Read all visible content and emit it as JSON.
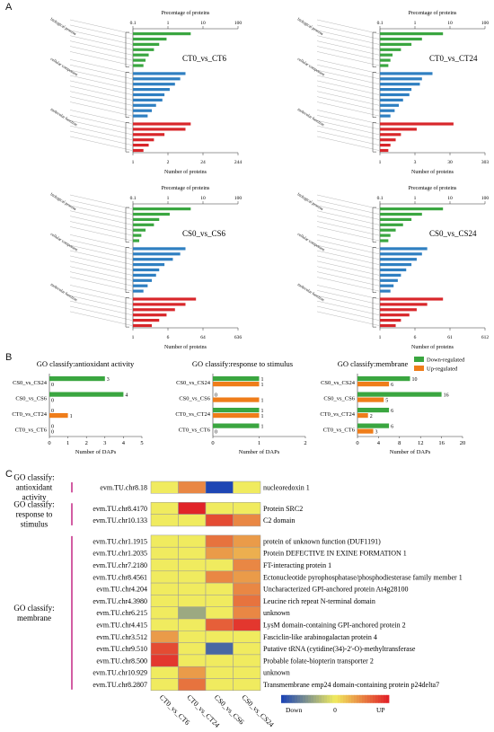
{
  "panels": {
    "a": "A",
    "b": "B",
    "c": "C"
  },
  "go_top": {
    "axis_title_top": "Precentage of proteins",
    "axis_title_bottom": "Number of proteins",
    "top_ticks": [
      "0.1",
      "1",
      "10",
      "100"
    ],
    "categories": [
      "biological process",
      "cellular component",
      "molecular function"
    ],
    "charts": [
      {
        "title": "CT0_vs_CT6",
        "bottom_ticks": [
          "1",
          "2",
          "24",
          "244"
        ]
      },
      {
        "title": "CT0_vs_CT24",
        "bottom_ticks": [
          "1",
          "3",
          "30",
          "303"
        ]
      },
      {
        "title": "CS0_vs_CS6",
        "bottom_ticks": [
          "1",
          "6",
          "64",
          "636"
        ]
      },
      {
        "title": "CS0_vs_CS24",
        "bottom_ticks": [
          "1",
          "6",
          "61",
          "612"
        ]
      }
    ]
  },
  "legend": {
    "down": "Down-regulated",
    "up": "Up-regulated",
    "down_color": "#3aa640",
    "up_color": "#ef7d1a"
  },
  "chart_data": [
    {
      "type": "bar",
      "title": "GO classify:antioxidant activity",
      "xlabel": "Number of DAPs",
      "categories": [
        "CS0_vs_CS24",
        "CS0_vs_CS6",
        "CT0_vs_CT24",
        "CT0_vs_CT6"
      ],
      "series": [
        {
          "name": "Down-regulated",
          "values": [
            3,
            4,
            0,
            0
          ]
        },
        {
          "name": "Up-regulated",
          "values": [
            0,
            0,
            1,
            0
          ]
        }
      ],
      "xlim": [
        0,
        5
      ],
      "xticks": [
        "0",
        "1",
        "2",
        "3",
        "4",
        "5"
      ]
    },
    {
      "type": "bar",
      "title": "GO classify:response to stimulus",
      "xlabel": "Number of DAPs",
      "categories": [
        "CS0_vs_CS24",
        "CS0_vs_CS6",
        "CT0_vs_CT24",
        "CT0_vs_CT6"
      ],
      "series": [
        {
          "name": "Down-regulated",
          "values": [
            1,
            0,
            1,
            1
          ]
        },
        {
          "name": "Up-regulated",
          "values": [
            1,
            1,
            1,
            0
          ]
        }
      ],
      "xlim": [
        0,
        2
      ],
      "xticks": [
        "0",
        "1",
        "2"
      ]
    },
    {
      "type": "bar",
      "title": "GO classify:membrane",
      "xlabel": "Number of DAPs",
      "categories": [
        "CS0_vs_CS24",
        "CS0_vs_CS6",
        "CT0_vs_CT24",
        "CT0_vs_CT6"
      ],
      "series": [
        {
          "name": "Down-regulated",
          "values": [
            10,
            16,
            6,
            6
          ]
        },
        {
          "name": "Up-regulated",
          "values": [
            6,
            5,
            2,
            3
          ]
        }
      ],
      "xlim": [
        0,
        20
      ],
      "xticks": [
        "0",
        "4",
        "8",
        "12",
        "16",
        "20"
      ]
    },
    {
      "type": "heatmap",
      "columns": [
        "CT0_vs_CT6",
        "CT0_vs_CT24",
        "CS0_vs_CS6",
        "CS0_vs_CS24"
      ],
      "groups": [
        {
          "label_lines": [
            "GO classify:",
            "antioxidant",
            "activity"
          ],
          "rows": [
            {
              "gene": "evm.TU.chr8.18",
              "desc": "nucleoredoxin 1",
              "values": [
                0,
                0.5,
                -1,
                0
              ]
            }
          ]
        },
        {
          "label_lines": [
            "GO classify:",
            "response to",
            "stimulus"
          ],
          "rows": [
            {
              "gene": "evm.TU.chr8.4170",
              "desc": "Protein SRC2",
              "values": [
                0,
                1,
                0,
                0
              ]
            },
            {
              "gene": "evm.TU.chr10.133",
              "desc": "C2 domain",
              "values": [
                0,
                0,
                0.8,
                0.5
              ]
            }
          ]
        },
        {
          "label_lines": [
            "GO classify:",
            "membrane"
          ],
          "rows": [
            {
              "gene": "evm.TU.chr1.1915",
              "desc": "protein of unknown function (DUF1191)",
              "values": [
                0,
                0,
                0.6,
                0.4
              ]
            },
            {
              "gene": "evm.TU.chr1.2035",
              "desc": "Protein DEFECTIVE IN EXINE FORMATION 1",
              "values": [
                0,
                0,
                0.4,
                0.3
              ]
            },
            {
              "gene": "evm.TU.chr7.2180",
              "desc": "FT-interacting protein 1",
              "values": [
                0,
                0,
                0,
                0.5
              ]
            },
            {
              "gene": "evm.TU.chr8.4561",
              "desc": "Ectonucleotide pyrophosphatase/phosphodiesterase family member 1",
              "values": [
                0,
                0,
                0.5,
                0.4
              ]
            },
            {
              "gene": "evm.TU.chr4.204",
              "desc": "Uncharacterized GPI-anchored protein At4g28100",
              "values": [
                0,
                0,
                0,
                0.5
              ]
            },
            {
              "gene": "evm.TU.chr4.3980",
              "desc": "Leucine rich repeat N-terminal domain",
              "values": [
                0,
                0,
                0,
                0.6
              ]
            },
            {
              "gene": "evm.TU.chr6.215",
              "desc": "unknown",
              "values": [
                0,
                -0.4,
                0,
                0.5
              ]
            },
            {
              "gene": "evm.TU.chr4.415",
              "desc": "LysM domain-containing GPI-anchored protein 2",
              "values": [
                0,
                0,
                0.7,
                0.9
              ]
            },
            {
              "gene": "evm.TU.chr3.512",
              "desc": "Fasciclin-like arabinogalactan protein 4",
              "values": [
                0.4,
                0,
                0,
                0
              ]
            },
            {
              "gene": "evm.TU.chr9.510",
              "desc": "Putative tRNA (cytidine(34)-2'-O)-methyltransferase",
              "values": [
                0.8,
                0,
                -0.8,
                0
              ]
            },
            {
              "gene": "evm.TU.chr8.500",
              "desc": "Probable folate-biopterin transporter 2",
              "values": [
                0.9,
                0,
                0,
                0
              ]
            },
            {
              "gene": "evm.TU.chr10.929",
              "desc": "unknown",
              "values": [
                0,
                0.4,
                0,
                0
              ]
            },
            {
              "gene": "evm.TU.chr8.2807",
              "desc": "Transmembrane emp24 domain-containing protein p24delta7",
              "values": [
                0,
                0.6,
                0,
                0
              ]
            }
          ]
        }
      ],
      "scale_labels": [
        "Down",
        "0",
        "UP"
      ]
    }
  ]
}
